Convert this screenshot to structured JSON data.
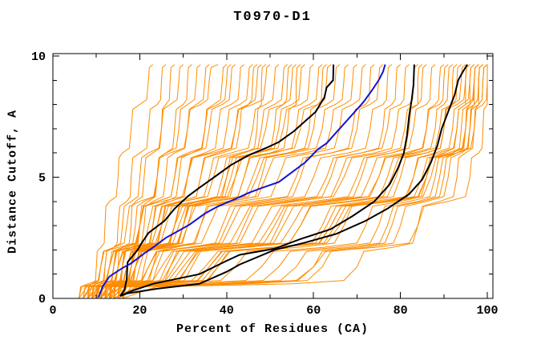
{
  "title": "T0970-D1",
  "axes": {
    "x": {
      "label": "Percent of Residues (CA)",
      "min": 0,
      "max": 100,
      "major_ticks": [
        0,
        20,
        40,
        60,
        80,
        100
      ],
      "major_tick_labels": [
        "0",
        "20",
        "40",
        "60",
        "80",
        "100"
      ],
      "minor_ticks": [
        10,
        30,
        50,
        70,
        90
      ]
    },
    "y": {
      "label": "Distance Cutoff, A",
      "min": 0,
      "max": 10,
      "major_ticks": [
        0,
        5,
        10
      ],
      "major_tick_labels": [
        "0",
        "5",
        "10"
      ],
      "minor_ticks": [
        1,
        2,
        3,
        4,
        6,
        7,
        8,
        9
      ]
    }
  },
  "colors": {
    "background": "#ffffff",
    "frame": "#000000",
    "ensemble": "#ff8c00",
    "highlight_black": "#000000",
    "highlight_blue": "#1414d2"
  },
  "chart_data": {
    "type": "line",
    "title": "T0970-D1",
    "xlabel": "Percent of Residues (CA)",
    "ylabel": "Distance Cutoff, A",
    "xlim": [
      0,
      100
    ],
    "ylim": [
      0,
      10
    ],
    "grid": false,
    "legend": "none",
    "description": "Cumulative curves: percent of CA residues (x) under a distance cutoff in Angstroms (y). Many orange model curves, three black highlighted curves, one blue highlighted curve.",
    "highlight_series": [
      {
        "name": "black-curve-1",
        "color": "#000000",
        "width": 2,
        "points": [
          [
            15.5,
            0.1
          ],
          [
            16.5,
            0.35
          ],
          [
            17,
            0.8
          ],
          [
            17.2,
            1.5
          ],
          [
            19.5,
            2.0
          ],
          [
            20.5,
            2.3
          ],
          [
            22,
            2.7
          ],
          [
            25.7,
            3.2
          ],
          [
            28,
            3.7
          ],
          [
            31,
            4.2
          ],
          [
            34,
            4.6
          ],
          [
            37.5,
            5.05
          ],
          [
            41,
            5.5
          ],
          [
            45,
            5.9
          ],
          [
            49,
            6.2
          ],
          [
            52,
            6.45
          ],
          [
            55.5,
            6.9
          ],
          [
            58,
            7.3
          ],
          [
            60.5,
            7.7
          ],
          [
            62.5,
            8.3
          ],
          [
            63,
            8.7
          ],
          [
            64.5,
            9.0
          ],
          [
            64.6,
            9.65
          ]
        ]
      },
      {
        "name": "black-curve-2",
        "color": "#000000",
        "width": 2,
        "points": [
          [
            15.5,
            0.1
          ],
          [
            18,
            0.3
          ],
          [
            23,
            0.6
          ],
          [
            33.7,
            1.0
          ],
          [
            40,
            1.55
          ],
          [
            43,
            1.8
          ],
          [
            51,
            2.05
          ],
          [
            57,
            2.45
          ],
          [
            63.9,
            2.85
          ],
          [
            69,
            3.4
          ],
          [
            74,
            4.0
          ],
          [
            77.5,
            4.7
          ],
          [
            79.5,
            5.4
          ],
          [
            80.8,
            6.0
          ],
          [
            81.5,
            6.7
          ],
          [
            82,
            7.5
          ],
          [
            82.6,
            8.2
          ],
          [
            83,
            8.8
          ],
          [
            83.2,
            9.65
          ]
        ]
      },
      {
        "name": "black-curve-3",
        "color": "#000000",
        "width": 2,
        "points": [
          [
            15.5,
            0.1
          ],
          [
            17,
            0.2
          ],
          [
            24,
            0.4
          ],
          [
            33.7,
            0.6
          ],
          [
            40,
            1.1
          ],
          [
            43,
            1.4
          ],
          [
            51,
            2.0
          ],
          [
            58,
            2.3
          ],
          [
            65.2,
            2.66
          ],
          [
            72,
            3.2
          ],
          [
            77,
            3.7
          ],
          [
            82,
            4.3
          ],
          [
            85,
            4.9
          ],
          [
            87,
            5.6
          ],
          [
            88.5,
            6.3
          ],
          [
            89.5,
            7.0
          ],
          [
            91,
            7.7
          ],
          [
            92.5,
            8.4
          ],
          [
            93.3,
            9.0
          ],
          [
            94.2,
            9.3
          ],
          [
            95.4,
            9.65
          ]
        ]
      },
      {
        "name": "blue-curve",
        "color": "#1414d2",
        "width": 2,
        "points": [
          [
            10.5,
            0.05
          ],
          [
            11.5,
            0.5
          ],
          [
            13,
            0.9
          ],
          [
            16,
            1.25
          ],
          [
            18,
            1.45
          ],
          [
            21,
            1.85
          ],
          [
            23,
            2.1
          ],
          [
            26,
            2.5
          ],
          [
            29,
            2.8
          ],
          [
            31.5,
            3.05
          ],
          [
            35,
            3.5
          ],
          [
            38,
            3.8
          ],
          [
            42,
            4.1
          ],
          [
            45,
            4.35
          ],
          [
            48,
            4.55
          ],
          [
            52,
            4.8
          ],
          [
            55,
            5.2
          ],
          [
            58,
            5.6
          ],
          [
            61,
            6.15
          ],
          [
            63,
            6.4
          ],
          [
            65.5,
            6.9
          ],
          [
            67.5,
            7.3
          ],
          [
            69.5,
            7.7
          ],
          [
            71.5,
            8.1
          ],
          [
            73.5,
            8.6
          ],
          [
            75,
            9.0
          ],
          [
            76,
            9.35
          ],
          [
            76.5,
            9.65
          ]
        ]
      }
    ],
    "ensemble": {
      "name": "model-ensemble-orange",
      "color": "#ff8c00",
      "width": 1,
      "cutoff_grid": [
        0,
        0.6,
        1.3,
        2.1,
        3,
        4,
        5,
        6,
        7,
        8,
        9,
        9.65
      ],
      "curves_pct": [
        [
          8,
          9,
          10,
          11,
          12,
          13,
          15,
          16,
          18,
          20,
          22,
          23
        ],
        [
          10,
          11,
          12,
          14,
          15,
          17,
          18,
          20,
          22,
          24,
          25,
          26
        ],
        [
          12,
          13,
          15,
          16,
          18,
          19,
          21,
          23,
          25,
          26,
          27,
          28
        ],
        [
          9,
          10,
          12,
          14,
          16,
          18,
          20,
          22,
          25,
          27,
          29,
          30
        ],
        [
          14,
          15,
          16,
          18,
          20,
          22,
          24,
          26,
          28,
          30,
          31,
          32
        ],
        [
          11,
          12,
          14,
          16,
          19,
          21,
          24,
          26,
          29,
          31,
          33,
          34
        ],
        [
          13,
          14,
          16,
          18,
          21,
          23,
          26,
          28,
          31,
          33,
          35,
          36
        ],
        [
          7,
          9,
          11,
          14,
          17,
          20,
          24,
          27,
          31,
          34,
          36,
          38
        ],
        [
          15,
          16,
          18,
          20,
          23,
          26,
          29,
          32,
          35,
          37,
          39,
          40
        ],
        [
          10,
          12,
          14,
          17,
          20,
          24,
          28,
          31,
          35,
          38,
          40,
          41
        ],
        [
          8,
          10,
          13,
          16,
          20,
          24,
          28,
          32,
          36,
          39,
          41,
          42
        ],
        [
          12,
          14,
          16,
          19,
          23,
          27,
          31,
          35,
          38,
          41,
          43,
          44
        ],
        [
          9,
          11,
          14,
          18,
          22,
          27,
          31,
          36,
          40,
          43,
          45,
          46
        ],
        [
          14,
          16,
          18,
          21,
          25,
          29,
          34,
          38,
          42,
          45,
          47,
          48
        ],
        [
          6,
          8,
          11,
          15,
          20,
          25,
          31,
          37,
          42,
          46,
          49,
          50
        ],
        [
          11,
          13,
          16,
          20,
          25,
          30,
          36,
          41,
          46,
          49,
          51,
          52
        ],
        [
          15,
          17,
          19,
          23,
          28,
          33,
          39,
          44,
          48,
          51,
          53,
          54
        ],
        [
          8,
          10,
          13,
          18,
          24,
          30,
          37,
          43,
          49,
          53,
          55,
          56
        ],
        [
          13,
          15,
          18,
          22,
          28,
          34,
          41,
          47,
          52,
          55,
          57,
          58
        ],
        [
          10,
          12,
          15,
          20,
          26,
          33,
          40,
          47,
          53,
          57,
          59,
          60
        ],
        [
          16,
          18,
          21,
          25,
          31,
          37,
          44,
          51,
          56,
          59,
          61,
          62
        ],
        [
          7,
          9,
          13,
          18,
          25,
          33,
          42,
          50,
          57,
          61,
          63,
          64
        ],
        [
          12,
          14,
          17,
          22,
          29,
          37,
          46,
          54,
          60,
          63,
          65,
          66
        ],
        [
          9,
          11,
          15,
          21,
          28,
          37,
          47,
          55,
          62,
          65,
          67,
          68
        ],
        [
          14,
          16,
          19,
          24,
          31,
          40,
          49,
          58,
          64,
          67,
          69,
          70
        ],
        [
          11,
          14,
          18,
          24,
          30,
          36,
          42,
          47,
          51,
          53,
          54,
          55
        ],
        [
          6,
          9,
          13,
          18,
          24,
          29,
          34,
          39,
          43,
          45,
          46,
          47
        ],
        [
          16,
          19,
          23,
          28,
          34,
          41,
          48,
          54,
          59,
          61,
          62,
          63
        ],
        [
          10,
          13,
          17,
          23,
          30,
          37,
          44,
          50,
          54,
          56,
          56,
          57
        ],
        [
          13,
          16,
          20,
          25,
          30,
          35,
          40,
          44,
          47,
          48,
          48,
          49
        ],
        [
          10,
          14,
          19,
          26,
          34,
          43,
          52,
          60,
          66,
          69,
          71,
          72
        ],
        [
          15,
          19,
          24,
          31,
          39,
          48,
          57,
          64,
          69,
          72,
          73,
          74
        ],
        [
          8,
          13,
          19,
          27,
          36,
          46,
          56,
          64,
          70,
          73,
          75,
          76
        ],
        [
          12,
          17,
          23,
          31,
          40,
          50,
          60,
          68,
          73,
          76,
          77,
          78
        ],
        [
          16,
          21,
          27,
          35,
          44,
          54,
          64,
          71,
          76,
          78,
          79,
          80
        ],
        [
          9,
          15,
          22,
          31,
          41,
          52,
          63,
          71,
          77,
          80,
          81,
          82
        ],
        [
          13,
          19,
          26,
          35,
          45,
          56,
          66,
          74,
          79,
          82,
          83,
          84
        ],
        [
          7,
          14,
          22,
          32,
          43,
          55,
          67,
          76,
          81,
          84,
          85,
          86
        ],
        [
          11,
          18,
          27,
          37,
          48,
          60,
          70,
          78,
          83,
          86,
          87,
          88
        ],
        [
          14,
          22,
          31,
          42,
          53,
          65,
          75,
          82,
          86,
          88,
          89,
          90
        ],
        [
          6,
          15,
          25,
          37,
          50,
          63,
          75,
          83,
          88,
          90,
          91,
          92
        ],
        [
          10,
          20,
          31,
          44,
          57,
          69,
          79,
          86,
          90,
          92,
          93,
          94
        ],
        [
          16,
          26,
          38,
          50,
          63,
          74,
          83,
          89,
          93,
          95,
          95,
          96
        ],
        [
          12,
          24,
          37,
          51,
          64,
          76,
          85,
          91,
          95,
          97,
          97,
          98
        ],
        [
          8,
          22,
          36,
          51,
          66,
          78,
          87,
          93,
          97,
          99,
          100,
          100
        ],
        [
          15,
          23,
          32,
          42,
          52,
          62,
          71,
          78,
          82,
          84,
          84,
          85
        ],
        [
          9,
          18,
          28,
          39,
          51,
          63,
          73,
          81,
          86,
          89,
          90,
          91
        ],
        [
          13,
          25,
          38,
          52,
          65,
          77,
          86,
          92,
          95,
          96,
          96,
          97
        ],
        [
          7,
          17,
          29,
          42,
          55,
          68,
          78,
          86,
          90,
          92,
          92,
          93
        ],
        [
          11,
          23,
          36,
          50,
          64,
          76,
          86,
          93,
          96,
          98,
          98,
          99
        ],
        [
          12,
          30,
          48,
          62,
          72,
          80,
          86,
          90,
          93,
          95,
          97,
          98
        ],
        [
          15,
          38,
          56,
          68,
          77,
          84,
          89,
          93,
          95,
          97,
          98,
          99
        ],
        [
          9,
          25,
          42,
          56,
          67,
          76,
          83,
          88,
          92,
          94,
          96,
          97
        ],
        [
          14,
          45,
          62,
          72,
          80,
          86,
          91,
          94,
          96,
          98,
          99,
          100
        ],
        [
          11,
          20,
          35,
          50,
          62,
          72,
          80,
          86,
          90,
          93,
          95,
          96
        ],
        [
          16,
          55,
          70,
          78,
          84,
          89,
          93,
          95,
          97,
          98,
          99,
          100
        ],
        [
          8,
          18,
          30,
          44,
          57,
          68,
          77,
          84,
          89,
          92,
          94,
          95
        ],
        [
          13,
          34,
          52,
          65,
          75,
          82,
          88,
          92,
          94,
          96,
          97,
          98
        ],
        [
          10,
          42,
          60,
          70,
          78,
          85,
          90,
          93,
          96,
          97,
          98,
          99
        ],
        [
          14,
          40,
          60,
          74,
          84,
          91,
          96,
          98,
          99,
          100,
          100,
          100
        ]
      ]
    }
  }
}
